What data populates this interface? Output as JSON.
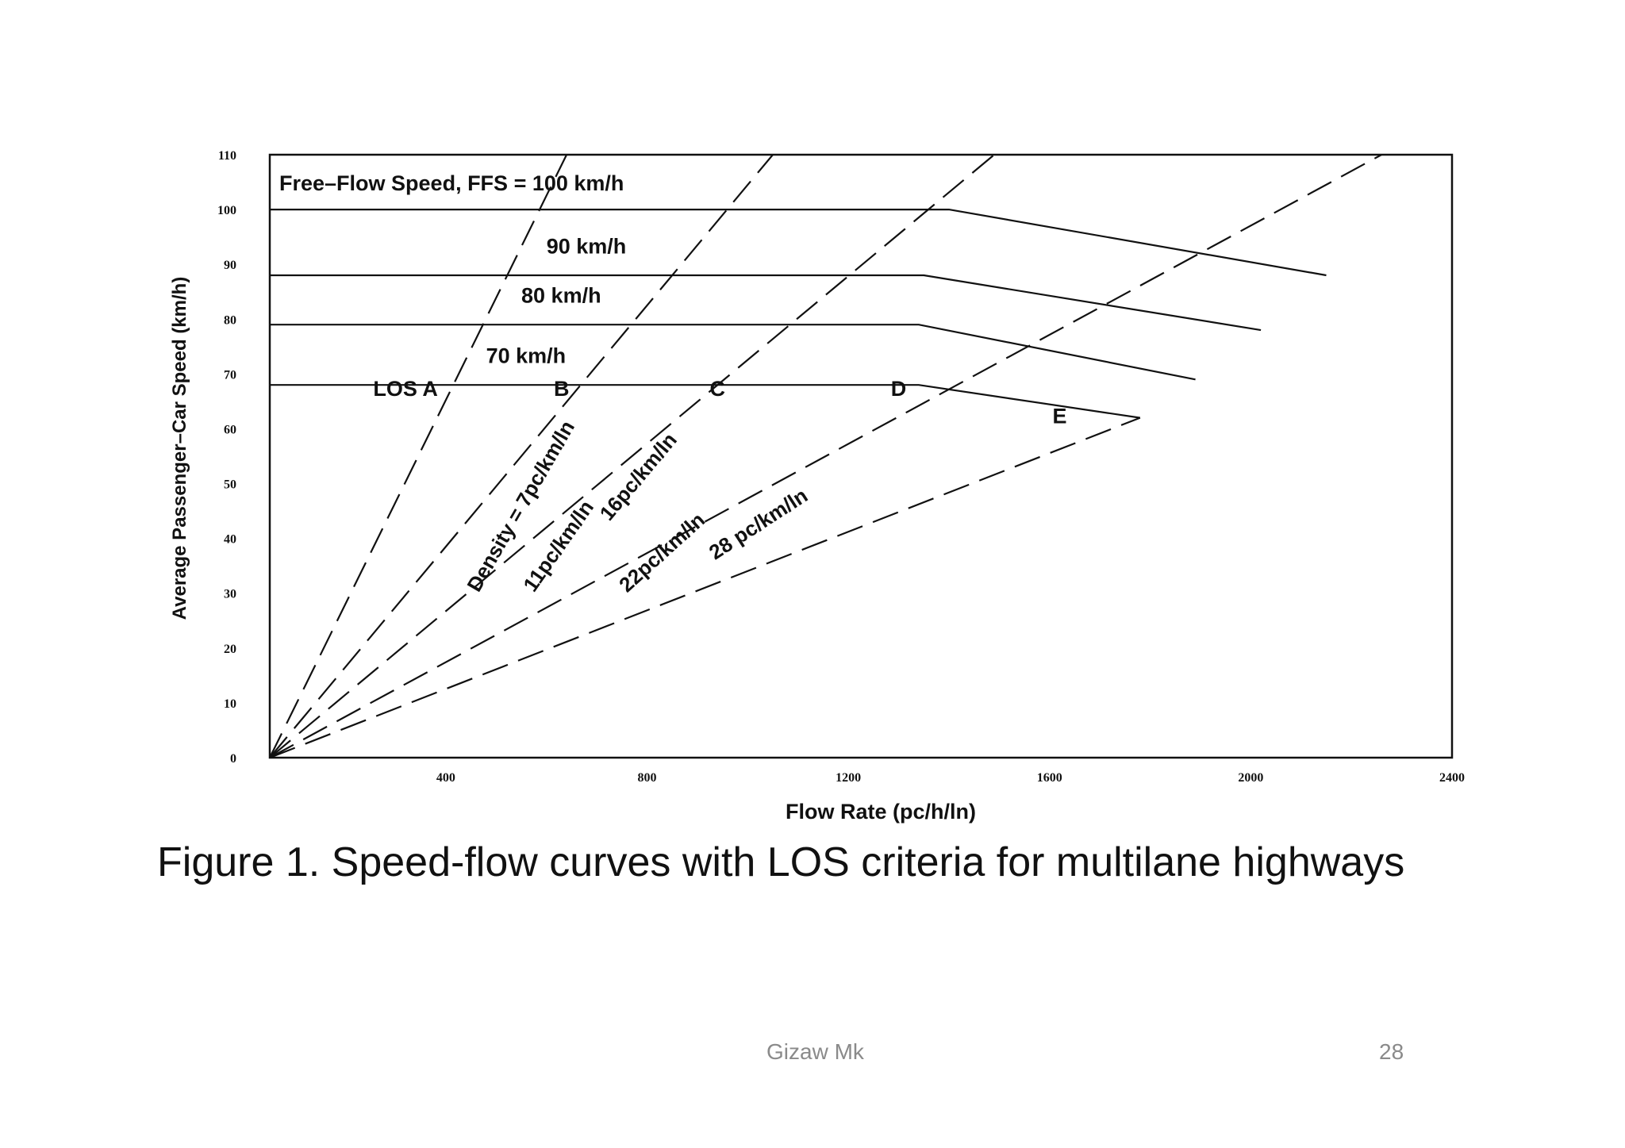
{
  "chart_data": {
    "type": "line",
    "title": "Free–Flow Speed, FFS = 100 km/h",
    "xlabel": "Flow Rate (pc/h/ln)",
    "ylabel": "Average Passenger–Car Speed (km/h)",
    "xlim": [
      50,
      2400
    ],
    "ylim": [
      0,
      110
    ],
    "x_ticks": [
      "400",
      "800",
      "1200",
      "1600",
      "2000",
      "2400"
    ],
    "y_ticks": [
      "0",
      "10",
      "20",
      "30",
      "40",
      "50",
      "60",
      "70",
      "80",
      "90",
      "100",
      "110"
    ],
    "grid": false,
    "series": [
      {
        "name": "Free–Flow Speed, FFS = 100 km/h",
        "style": "solid",
        "points": [
          [
            50,
            100
          ],
          [
            1400,
            100
          ],
          [
            2150,
            88
          ]
        ]
      },
      {
        "name": "90 km/h",
        "style": "solid",
        "points": [
          [
            50,
            88
          ],
          [
            1350,
            88
          ],
          [
            2020,
            78
          ]
        ]
      },
      {
        "name": "80 km/h",
        "style": "solid",
        "points": [
          [
            50,
            79
          ],
          [
            1340,
            79
          ],
          [
            1890,
            69
          ]
        ]
      },
      {
        "name": "70 km/h",
        "style": "solid",
        "points": [
          [
            50,
            68
          ],
          [
            1340,
            68
          ],
          [
            1780,
            62
          ]
        ]
      }
    ],
    "density_lines": [
      {
        "name": "Density = 7pc/km/ln",
        "style": "dashed",
        "points": [
          [
            50,
            0
          ],
          [
            640,
            110
          ]
        ]
      },
      {
        "name": "11pc/km/ln",
        "style": "dashed",
        "points": [
          [
            50,
            0
          ],
          [
            1050,
            110
          ]
        ]
      },
      {
        "name": "16pc/km/ln",
        "style": "dashed",
        "points": [
          [
            50,
            0
          ],
          [
            1490,
            110
          ]
        ]
      },
      {
        "name": "22pc/km/ln",
        "style": "dashed",
        "points": [
          [
            50,
            0
          ],
          [
            2260,
            110
          ]
        ]
      },
      {
        "name": "28 pc/km/ln",
        "style": "dashed",
        "points": [
          [
            50,
            0
          ],
          [
            1780,
            62
          ]
        ]
      }
    ],
    "los_labels": [
      {
        "text": "LOS A",
        "x": 320,
        "y": 66
      },
      {
        "text": "B",
        "x": 630,
        "y": 66
      },
      {
        "text": "C",
        "x": 940,
        "y": 66
      },
      {
        "text": "D",
        "x": 1300,
        "y": 66
      },
      {
        "text": "E",
        "x": 1620,
        "y": 61
      }
    ],
    "speed_labels": [
      {
        "text": "90 km/h",
        "x": 600,
        "y": 92
      },
      {
        "text": "80 km/h",
        "x": 550,
        "y": 83
      },
      {
        "text": "70 km/h",
        "x": 480,
        "y": 72
      }
    ]
  },
  "caption": "Figure 1. Speed-flow curves with LOS criteria for multilane highways",
  "footer": {
    "author": "Gizaw Mk",
    "page": "28"
  }
}
